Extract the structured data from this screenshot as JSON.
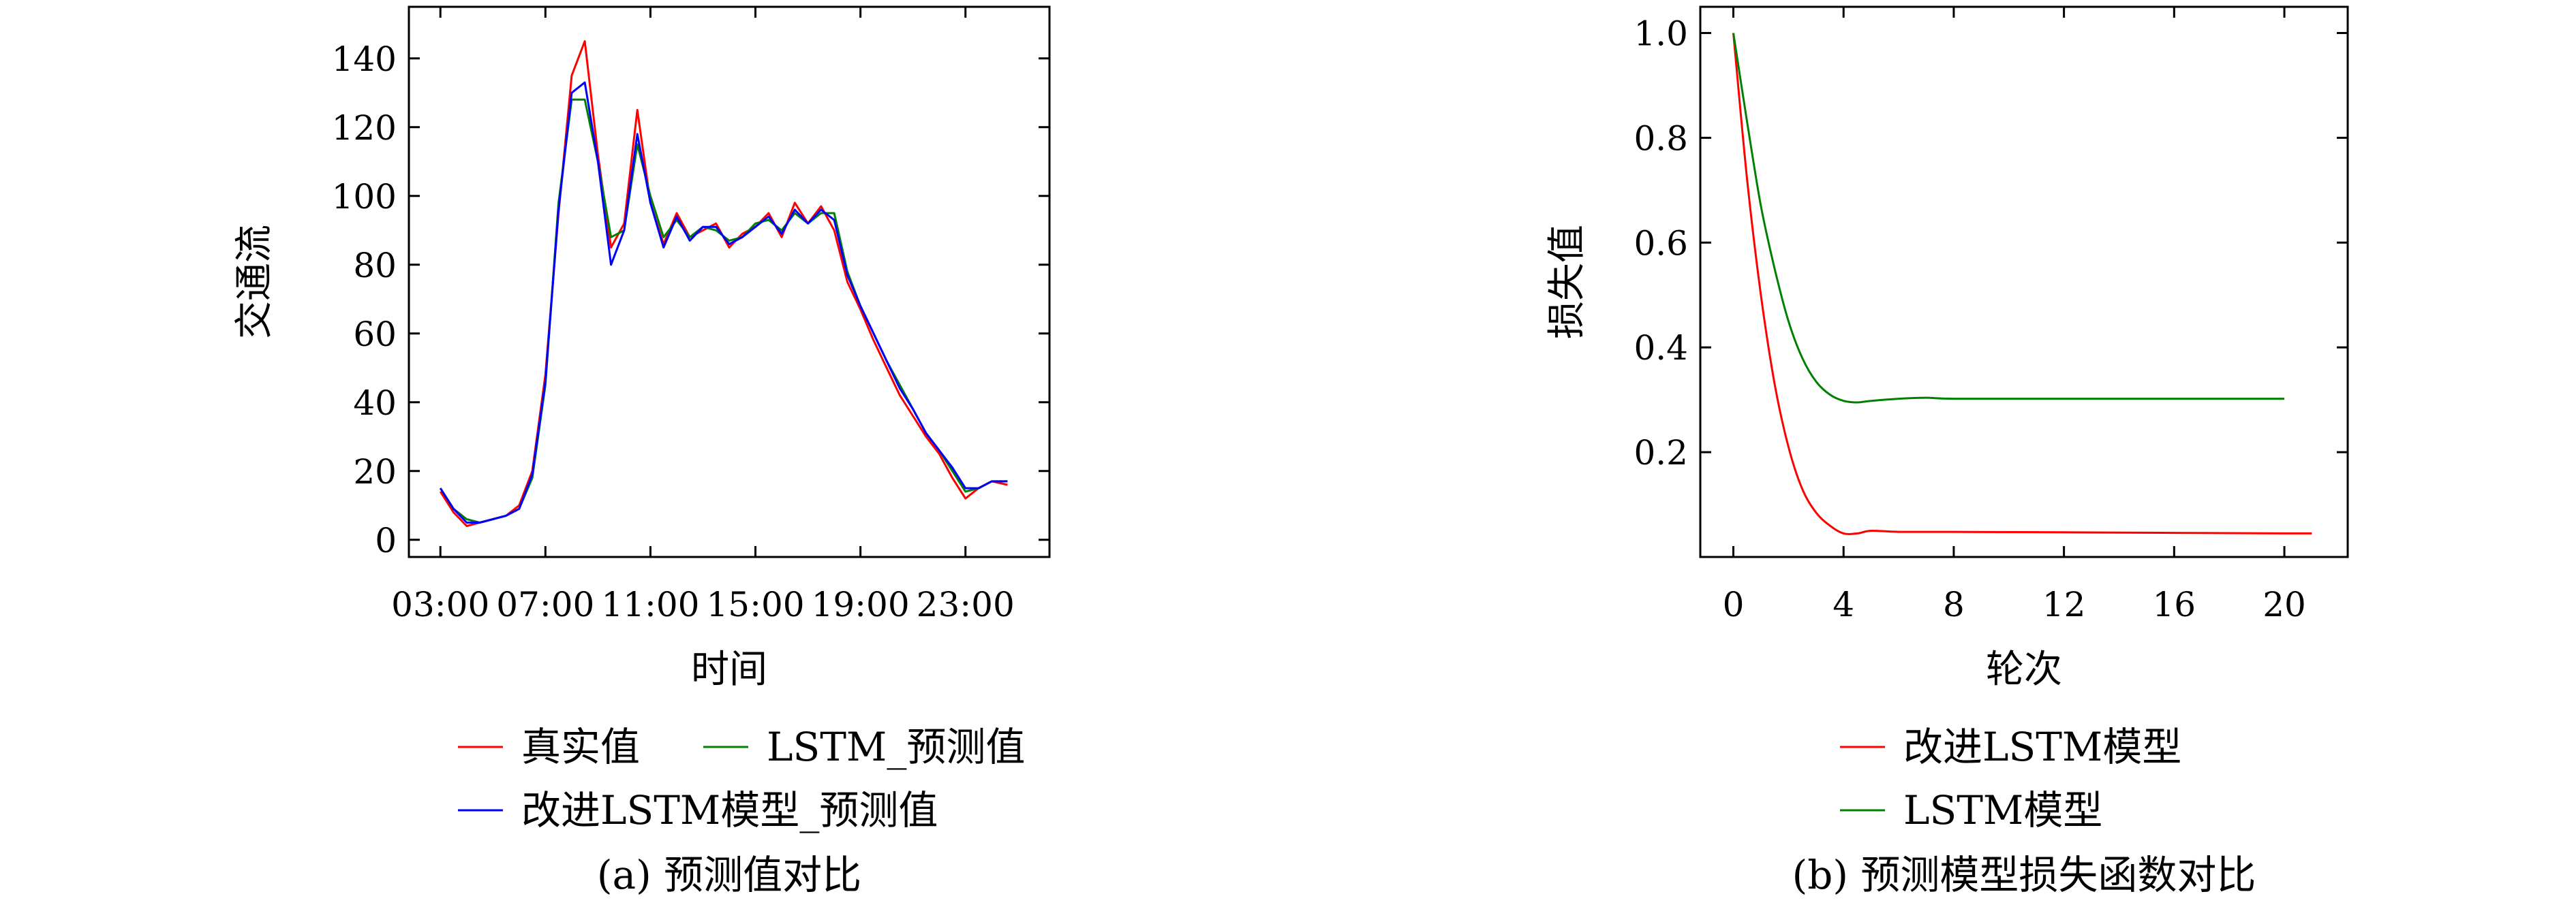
{
  "chart_data": [
    {
      "id": "a",
      "type": "line",
      "caption": "(a) 预测值对比",
      "xlabel": "时间",
      "ylabel": "交通流",
      "x_tick_labels": [
        "03:00",
        "07:00",
        "11:00",
        "15:00",
        "19:00",
        "23:00"
      ],
      "x_tick_hours": [
        3,
        7,
        11,
        15,
        19,
        23
      ],
      "xlim_hours": [
        1.8,
        26.2
      ],
      "ylim": [
        -5,
        155
      ],
      "y_ticks": [
        0,
        20,
        40,
        60,
        80,
        100,
        120,
        140
      ],
      "x_hours": [
        3.0,
        3.5,
        4.0,
        4.5,
        5.0,
        5.5,
        6.0,
        6.5,
        7.0,
        7.5,
        8.0,
        8.5,
        9.0,
        9.5,
        10.0,
        10.5,
        11.0,
        11.5,
        12.0,
        12.5,
        13.0,
        13.5,
        14.0,
        14.5,
        15.0,
        15.5,
        16.0,
        16.5,
        17.0,
        17.5,
        18.0,
        18.5,
        19.0,
        19.5,
        20.0,
        20.5,
        21.0,
        21.5,
        22.0,
        22.5,
        23.0,
        23.5,
        24.0,
        24.6
      ],
      "legend": [
        {
          "name": "真实值",
          "color": "#ff0000"
        },
        {
          "name": "LSTM_预测值",
          "color": "#008000"
        },
        {
          "name": "改进LSTM模型_预测值",
          "color": "#0000ff"
        }
      ],
      "series": [
        {
          "name": "真实值",
          "color": "#ff0000",
          "values": [
            14,
            8,
            4,
            5,
            6,
            7,
            10,
            20,
            48,
            95,
            135,
            145,
            112,
            85,
            92,
            125,
            98,
            86,
            95,
            88,
            90,
            92,
            85,
            89,
            91,
            95,
            88,
            98,
            92,
            97,
            90,
            75,
            67,
            58,
            50,
            42,
            36,
            30,
            25,
            18,
            12,
            15,
            17,
            16
          ]
        },
        {
          "name": "LSTM_预测值",
          "color": "#008000",
          "values": [
            15,
            9,
            6,
            5,
            6,
            7,
            9,
            18,
            45,
            98,
            128,
            128,
            110,
            88,
            90,
            115,
            100,
            88,
            93,
            88,
            91,
            90,
            87,
            88,
            92,
            93,
            90,
            95,
            92,
            95,
            95,
            78,
            68,
            60,
            52,
            45,
            38,
            31,
            26,
            20,
            14,
            15,
            17,
            17
          ]
        },
        {
          "name": "改进LSTM模型_预测值",
          "color": "#0000ff",
          "values": [
            15,
            9,
            5,
            5,
            6,
            7,
            9,
            19,
            46,
            96,
            130,
            133,
            110,
            80,
            90,
            118,
            98,
            85,
            94,
            87,
            91,
            91,
            86,
            88,
            91,
            94,
            89,
            96,
            92,
            96,
            93,
            77,
            68,
            60,
            52,
            44,
            38,
            31,
            26,
            21,
            15,
            15,
            17,
            17
          ]
        }
      ]
    },
    {
      "id": "b",
      "type": "line",
      "caption": "(b) 预测模型损失函数对比",
      "xlabel": "轮次",
      "ylabel": "损失值",
      "x_ticks": [
        0,
        4,
        8,
        12,
        16,
        20
      ],
      "y_ticks": [
        0.2,
        0.4,
        0.6,
        0.8
      ],
      "y_tick_top_label": "1.0",
      "xlim": [
        -1.2,
        22.3
      ],
      "ylim": [
        -0.0,
        1.05
      ],
      "legend": [
        {
          "name": "改进LSTM模型",
          "color": "#ff0000"
        },
        {
          "name": "LSTM模型",
          "color": "#008000"
        }
      ],
      "series": [
        {
          "name": "改进LSTM模型",
          "color": "#ff0000",
          "x": [
            0,
            0.5,
            1,
            1.5,
            2,
            2.5,
            3,
            3.5,
            4,
            4.5,
            5,
            6,
            8,
            12,
            16,
            20,
            21
          ],
          "values": [
            1.0,
            0.72,
            0.5,
            0.33,
            0.21,
            0.13,
            0.085,
            0.06,
            0.045,
            0.045,
            0.05,
            0.048,
            0.048,
            0.047,
            0.046,
            0.045,
            0.045
          ]
        },
        {
          "name": "LSTM模型",
          "color": "#008000",
          "x": [
            0,
            0.5,
            1,
            1.5,
            2,
            2.5,
            3,
            3.5,
            4,
            4.5,
            5,
            6,
            7,
            8,
            12,
            16,
            20
          ],
          "values": [
            1.0,
            0.83,
            0.67,
            0.55,
            0.45,
            0.38,
            0.335,
            0.31,
            0.298,
            0.295,
            0.298,
            0.302,
            0.304,
            0.302,
            0.302,
            0.302,
            0.302
          ]
        }
      ]
    }
  ]
}
